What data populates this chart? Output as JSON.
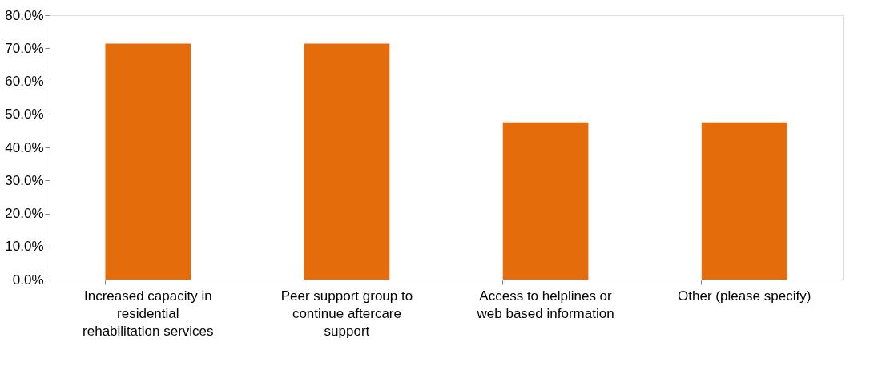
{
  "chart_data": {
    "type": "bar",
    "categories": [
      "Increased capacity in residential rehabilitation services",
      "Peer support group to continue aftercare support",
      "Access to helplines or web based information",
      "Other (please specify)"
    ],
    "values": [
      71.4,
      71.4,
      47.6,
      47.6
    ],
    "color": "#e46c0a",
    "ylim": [
      0,
      80
    ],
    "yticks": [
      {
        "value": 0,
        "label": "0.0%"
      },
      {
        "value": 10,
        "label": "10.0%"
      },
      {
        "value": 20,
        "label": "20.0%"
      },
      {
        "value": 30,
        "label": "30.0%"
      },
      {
        "value": 40,
        "label": "40.0%"
      },
      {
        "value": 50,
        "label": "50.0%"
      },
      {
        "value": 60,
        "label": "60.0%"
      },
      {
        "value": 70,
        "label": "70.0%"
      },
      {
        "value": 80,
        "label": "80.0%"
      }
    ],
    "grid": false
  }
}
